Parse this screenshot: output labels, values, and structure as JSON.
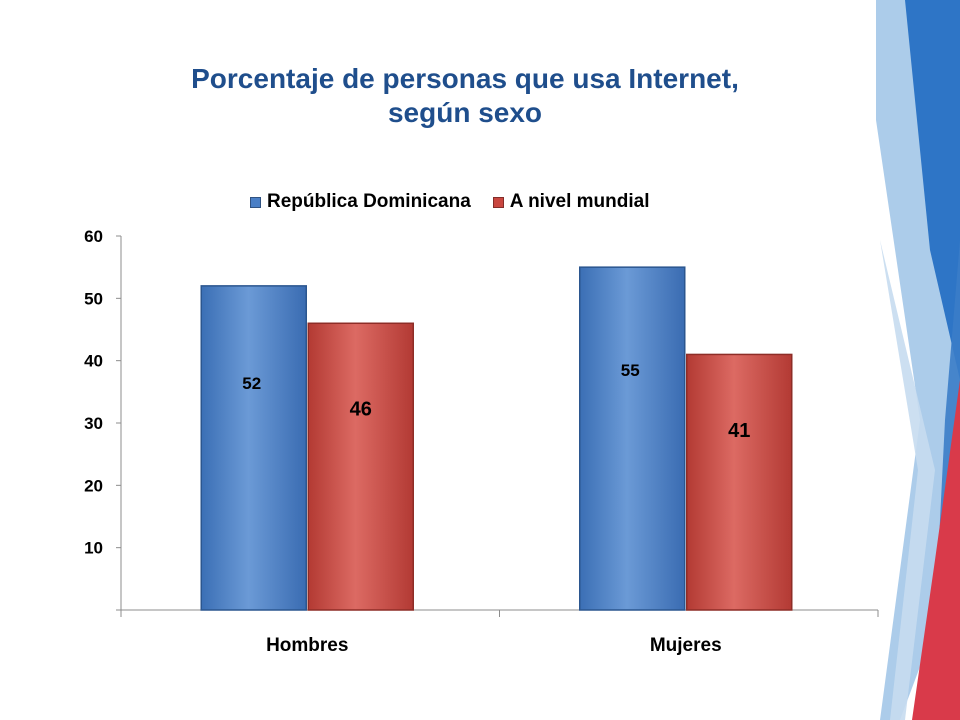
{
  "chart_data": {
    "type": "bar",
    "title_lines": [
      "Porcentaje de personas que usa Internet,",
      "según sexo"
    ],
    "categories": [
      "Hombres",
      "Mujeres"
    ],
    "series": [
      {
        "name": "República Dominicana",
        "values": [
          52,
          55
        ],
        "labels": [
          "52",
          "55"
        ],
        "color": "#4a7fc6"
      },
      {
        "name": "A nivel mundial",
        "values": [
          46,
          41
        ],
        "labels": [
          "46",
          "41"
        ],
        "color": "#c9463f"
      }
    ],
    "y_ticks": [
      "10",
      "20",
      "30",
      "40",
      "50",
      "60"
    ],
    "y_tick_values": [
      10,
      20,
      30,
      40,
      50,
      60
    ],
    "ylim": [
      0,
      60
    ],
    "legend_position": "top",
    "grid": false
  },
  "colors": {
    "title": "#1f4e8c",
    "deco_light_blue": "#9dc3e6",
    "deco_blue": "#2e75c6",
    "deco_red": "#d93a4a"
  }
}
